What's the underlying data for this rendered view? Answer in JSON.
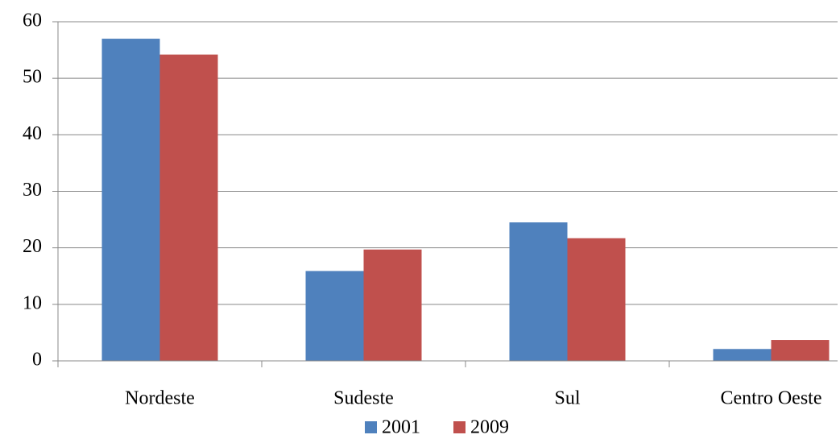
{
  "chart_data": {
    "type": "bar",
    "categories": [
      "Nordeste",
      "Sudeste",
      "Sul",
      "Centro Oeste"
    ],
    "series": [
      {
        "name": "2001",
        "color": "#4f81bd",
        "values": [
          57,
          15.9,
          24.5,
          2.1
        ]
      },
      {
        "name": "2009",
        "color": "#c0504d",
        "values": [
          54.2,
          19.7,
          21.7,
          3.7
        ]
      }
    ],
    "ylim": [
      0,
      60
    ],
    "yticks": [
      0,
      10,
      20,
      30,
      40,
      50,
      60
    ],
    "grid": true,
    "legend": "bottom"
  }
}
